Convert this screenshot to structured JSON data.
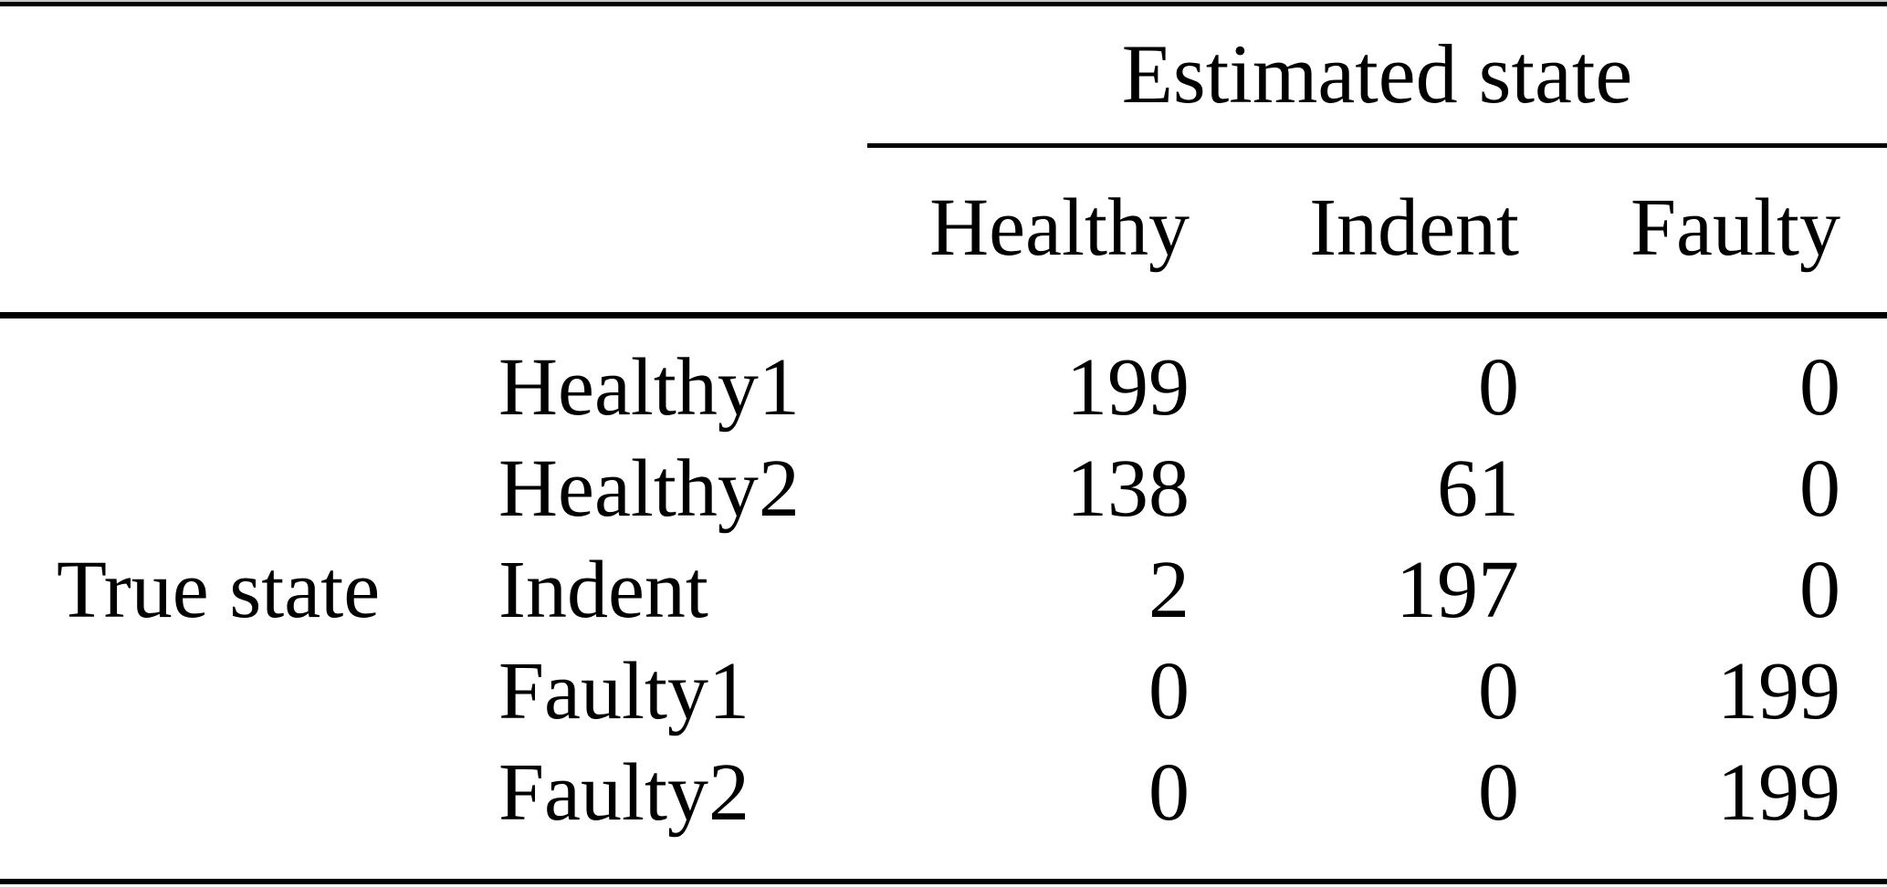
{
  "table": {
    "column_group_title": "Estimated state",
    "row_group_title": "True state",
    "columns": [
      "Healthy",
      "Indent",
      "Faulty"
    ],
    "rows": [
      {
        "label": "Healthy1",
        "values": [
          "199",
          "0",
          "0"
        ]
      },
      {
        "label": "Healthy2",
        "values": [
          "138",
          "61",
          "0"
        ]
      },
      {
        "label": "Indent",
        "values": [
          "2",
          "197",
          "0"
        ]
      },
      {
        "label": "Faulty1",
        "values": [
          "0",
          "0",
          "199"
        ]
      },
      {
        "label": "Faulty2",
        "values": [
          "0",
          "0",
          "199"
        ]
      }
    ]
  },
  "chart_data": {
    "type": "table",
    "column_group_title": "Estimated state",
    "row_group_title": "True state",
    "columns": [
      "Healthy",
      "Indent",
      "Faulty"
    ],
    "rows": [
      [
        "Healthy1",
        199,
        0,
        0
      ],
      [
        "Healthy2",
        138,
        61,
        0
      ],
      [
        "Indent",
        2,
        197,
        0
      ],
      [
        "Faulty1",
        0,
        0,
        199
      ],
      [
        "Faulty2",
        0,
        0,
        199
      ]
    ]
  }
}
